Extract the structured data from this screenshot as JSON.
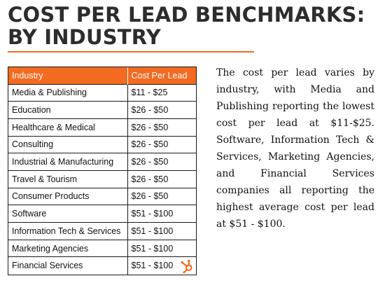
{
  "title": {
    "line1": "COST PER LEAD BENCHMARKS:",
    "line2": "BY INDUSTRY"
  },
  "table": {
    "headers": [
      "Industry",
      "Cost Per Lead"
    ],
    "rows": [
      {
        "industry": "Media & Publishing",
        "cost": "$11 - $25"
      },
      {
        "industry": "Education",
        "cost": "$26 - $50"
      },
      {
        "industry": "Healthcare & Medical",
        "cost": "$26 - $50"
      },
      {
        "industry": "Consulting",
        "cost": "$26 - $50"
      },
      {
        "industry": "Industrial & Manufacturing",
        "cost": "$26 - $50"
      },
      {
        "industry": "Travel & Tourism",
        "cost": "$26 - $50"
      },
      {
        "industry": "Consumer Products",
        "cost": "$26 - $50"
      },
      {
        "industry": "Software",
        "cost": "$51 - $100"
      },
      {
        "industry": "Information Tech & Services",
        "cost": "$51 - $100"
      },
      {
        "industry": "Marketing Agencies",
        "cost": "$51 - $100"
      },
      {
        "industry": "Financial Services",
        "cost": "$51 - $100"
      }
    ]
  },
  "description": "The cost per lead varies by industry, with Media and Publishing reporting the lowest cost per lead at $11-$25. Software, Information Tech & Services, Marketing Agencies, and Financial Services companies all reporting the highest average cost per lead at $51 - $100.",
  "logo": {
    "icon": "hubspot-sprocket-icon"
  },
  "colors": {
    "accent": "#f26b21",
    "text": "#2d2d2d"
  }
}
